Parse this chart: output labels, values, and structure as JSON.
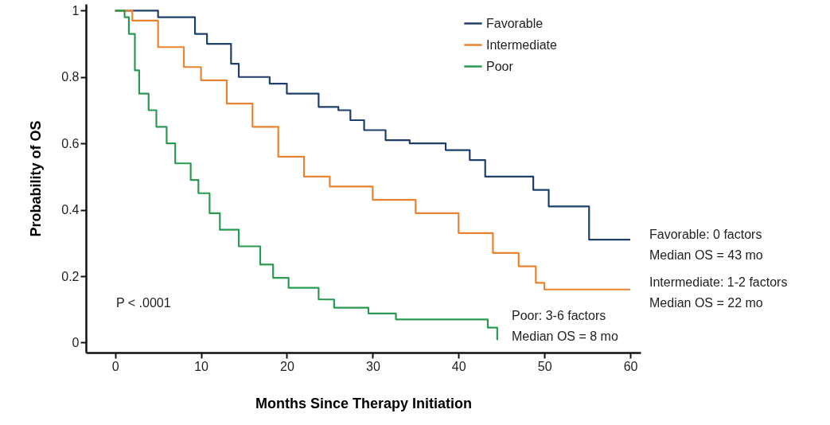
{
  "chart_data": {
    "type": "step",
    "xlabel": "Months Since Therapy Initiation",
    "ylabel": "Probability of OS",
    "xlim": [
      -3.4,
      61.2
    ],
    "ylim": [
      -0.03,
      1.02
    ],
    "xticks": [
      0,
      10,
      20,
      30,
      40,
      50,
      60
    ],
    "yticks": [
      0,
      0.2,
      0.4,
      0.6,
      0.8,
      1
    ],
    "grid": false,
    "legend": "top right",
    "line_style": "solid",
    "marker": "none",
    "series": [
      {
        "name": "Favorable",
        "color": "#1f3f6b",
        "x": [
          0,
          5,
          9.3,
          10.7,
          13.5,
          14.4,
          18,
          20,
          23.7,
          26,
          27.4,
          29,
          31.5,
          34.3,
          38.5,
          41.3,
          43.1,
          48.7,
          50.5,
          55.2,
          60
        ],
        "values": [
          1.0,
          0.98,
          0.93,
          0.9,
          0.84,
          0.8,
          0.78,
          0.75,
          0.71,
          0.7,
          0.67,
          0.64,
          0.61,
          0.6,
          0.58,
          0.55,
          0.5,
          0.46,
          0.41,
          0.31,
          0.31
        ]
      },
      {
        "name": "Intermediate",
        "color": "#e8842f",
        "x": [
          0,
          1,
          2,
          5,
          8,
          10,
          13,
          16,
          19,
          22,
          25,
          30,
          35,
          40,
          44,
          47,
          49,
          50,
          60
        ],
        "values": [
          1.0,
          1.0,
          0.97,
          0.89,
          0.83,
          0.79,
          0.72,
          0.65,
          0.56,
          0.5,
          0.47,
          0.43,
          0.39,
          0.33,
          0.27,
          0.23,
          0.18,
          0.16,
          0.16
        ]
      },
      {
        "name": "Poor",
        "color": "#2a9a52",
        "x": [
          0,
          1.1,
          1.6,
          2.3,
          2.8,
          3.9,
          4.8,
          6,
          7,
          8.8,
          9.7,
          11,
          12.2,
          14.4,
          16.9,
          18.4,
          20.2,
          23.7,
          25.5,
          29.5,
          32.7,
          43.4,
          44.5,
          44.6
        ],
        "values": [
          1.0,
          0.98,
          0.93,
          0.82,
          0.75,
          0.7,
          0.65,
          0.6,
          0.54,
          0.49,
          0.45,
          0.39,
          0.34,
          0.29,
          0.235,
          0.195,
          0.165,
          0.13,
          0.105,
          0.088,
          0.07,
          0.045,
          0.01,
          0.01
        ]
      }
    ],
    "annotations": [
      "P < .0001",
      "Poor: 3-6 factors\nMedian OS = 8 mo",
      "Favorable: 0 factors\nMedian OS = 43 mo",
      "Intermediate: 1-2 factors\nMedian OS = 22 mo"
    ]
  }
}
